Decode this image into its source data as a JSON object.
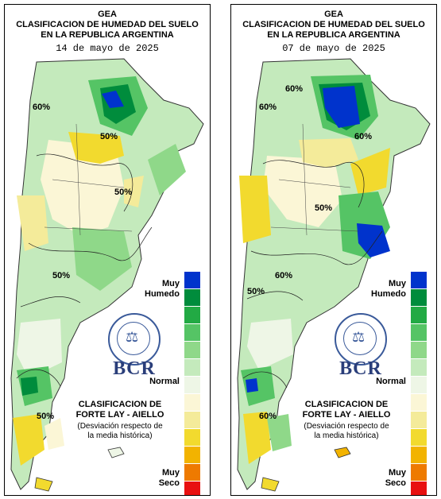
{
  "panels": [
    {
      "title_line1": "GEA",
      "title_line2": "CLASIFICACION DE HUMEDAD DEL SUELO",
      "title_line3": "EN LA REPUBLICA ARGENTINA",
      "date": "14 de mayo de 2025",
      "contour_labels": [
        "60%",
        "50%",
        "50%",
        "50%",
        "50%"
      ]
    },
    {
      "title_line1": "GEA",
      "title_line2": "CLASIFICACION DE HUMEDAD DEL SUELO",
      "title_line3": "EN LA REPUBLICA ARGENTINA",
      "date": "07 de mayo de 2025",
      "contour_labels": [
        "60%",
        "60%",
        "60%",
        "50%",
        "60%",
        "50%",
        "60%"
      ]
    }
  ],
  "legend": {
    "top_label_1": "Muy",
    "top_label_2": "Humedo",
    "middle_label": "Normal",
    "bottom_label_1": "Muy",
    "bottom_label_2": "Seco",
    "colors": [
      "#0033cc",
      "#008c3c",
      "#22aa44",
      "#55c465",
      "#8fd889",
      "#c4eabc",
      "#eef6e6",
      "#fbf6d6",
      "#f4eb9a",
      "#f2da2e",
      "#f2b300",
      "#ee7a00",
      "#e81010"
    ]
  },
  "logo": {
    "text": "BCR"
  },
  "classification": {
    "line1": "CLASIFICACION DE",
    "line2": "FORTE LAY - AIELLO",
    "note1": "(Desviación respecto de",
    "note2": "la media histórica)"
  }
}
